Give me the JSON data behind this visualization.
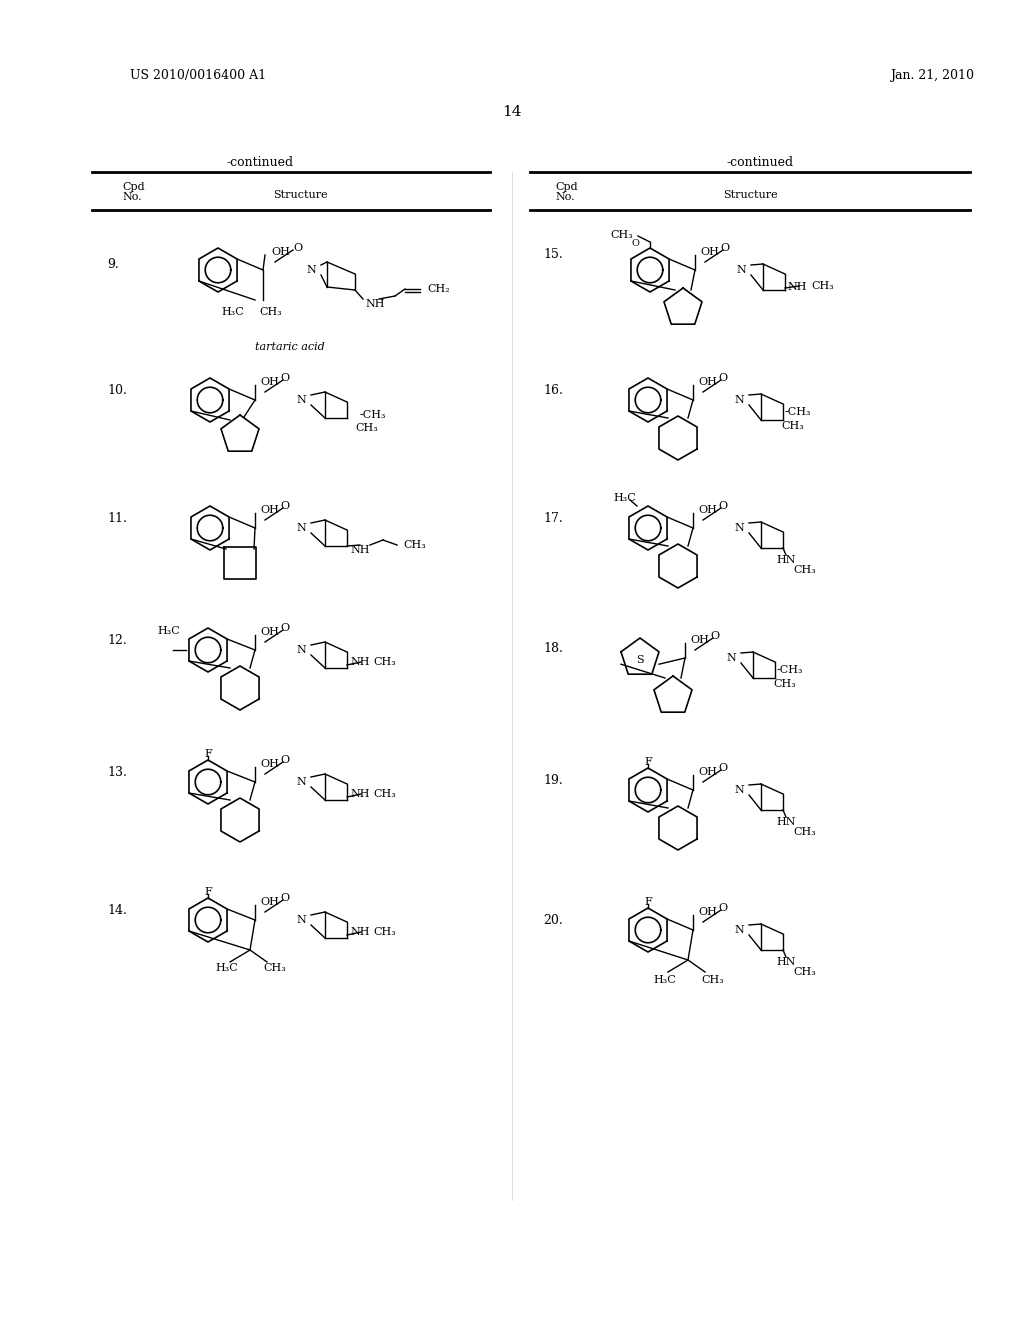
{
  "page_number": "14",
  "patent_number": "US 2010/0016400 A1",
  "patent_date": "Jan. 21, 2010",
  "left_header": "-continued",
  "right_header": "-continued",
  "col_headers": [
    "Cpd\nNo.",
    "Structure"
  ],
  "background": "#ffffff",
  "text_color": "#000000",
  "compounds": [
    {
      "number": "9.",
      "label": "tartaric acid",
      "side": "left",
      "row": 0
    },
    {
      "number": "10.",
      "label": "",
      "side": "left",
      "row": 1
    },
    {
      "number": "11.",
      "label": "",
      "side": "left",
      "row": 2
    },
    {
      "number": "12.",
      "label": "",
      "side": "left",
      "row": 3
    },
    {
      "number": "13.",
      "label": "",
      "side": "left",
      "row": 4
    },
    {
      "number": "14.",
      "label": "",
      "side": "left",
      "row": 5
    },
    {
      "number": "15.",
      "label": "",
      "side": "right",
      "row": 0
    },
    {
      "number": "16.",
      "label": "",
      "side": "right",
      "row": 1
    },
    {
      "number": "17.",
      "label": "",
      "side": "right",
      "row": 2
    },
    {
      "number": "18.",
      "label": "",
      "side": "right",
      "row": 3
    },
    {
      "number": "19.",
      "label": "",
      "side": "right",
      "row": 4
    },
    {
      "number": "20.",
      "label": "",
      "side": "right",
      "row": 5
    }
  ]
}
